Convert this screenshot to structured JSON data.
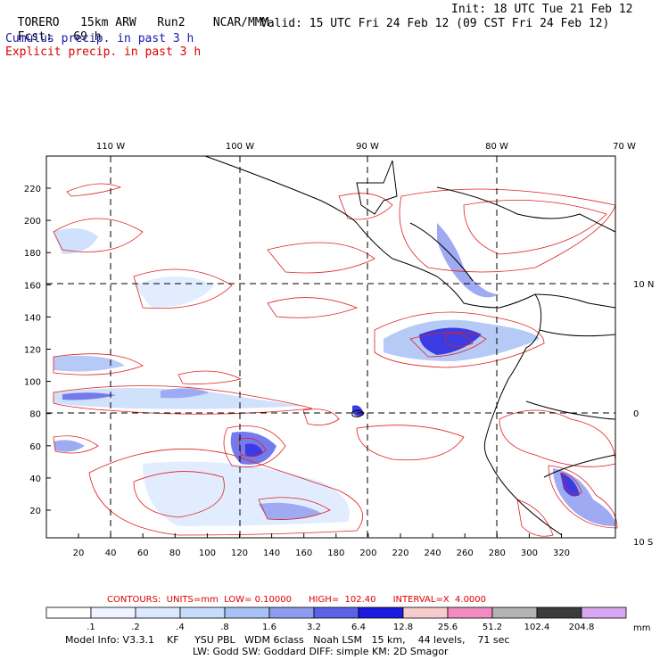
{
  "header": {
    "model": "TORERO",
    "resolution": "15km ARW",
    "run": "Run2",
    "org": "NCAR/MMM",
    "init": "Init: 18 UTC Tue 21 Feb 12",
    "fcst_label": "Fcst:",
    "fcst_value": "69 h",
    "valid": "Valid: 15 UTC Fri 24 Feb 12 (09 CST Fri 24 Feb 12)",
    "line_cumulus": "Cumulus precip. in past 3 h",
    "line_explicit": "Explicit precip. in past 3 h"
  },
  "map": {
    "lon_labels": [
      "110 W",
      "100 W",
      "90 W",
      "80 W",
      "70 W"
    ],
    "lat_labels": [
      "10 N",
      "0",
      "10 S"
    ],
    "x_ticks": [
      "20",
      "40",
      "60",
      "80",
      "100",
      "120",
      "140",
      "160",
      "180",
      "200",
      "220",
      "240",
      "260",
      "280",
      "300",
      "320"
    ],
    "y_ticks": [
      "20",
      "40",
      "60",
      "80",
      "100",
      "120",
      "140",
      "160",
      "180",
      "200",
      "220"
    ]
  },
  "contours": {
    "line": "CONTOURS:  UNITS=mm  LOW= 0.10000      HIGH=  102.40      INTERVAL=X  4.0000"
  },
  "colorbar": {
    "labels": [
      ".1",
      ".2",
      ".4",
      ".8",
      "1.6",
      "3.2",
      "6.4",
      "12.8",
      "25.6",
      "51.2",
      "102.4",
      "204.8"
    ],
    "unit": "mm",
    "colors": [
      "#ffffff",
      "#eef4ff",
      "#dceaff",
      "#c7dcfb",
      "#a9c2f5",
      "#8e9cf0",
      "#5c62e8",
      "#1a1ae0",
      "#f6cccc",
      "#f08cc0",
      "#b4b4b4",
      "#3c3c3c",
      "#d8a8f2"
    ]
  },
  "footer": {
    "line1": "Model Info: V3.3.1    KF     YSU PBL   WDM 6class   Noah LSM   15 km,    44 levels,    71 sec",
    "line2": "LW: Godd SW: Goddard DIFF: simple KM: 2D Smagor"
  }
}
